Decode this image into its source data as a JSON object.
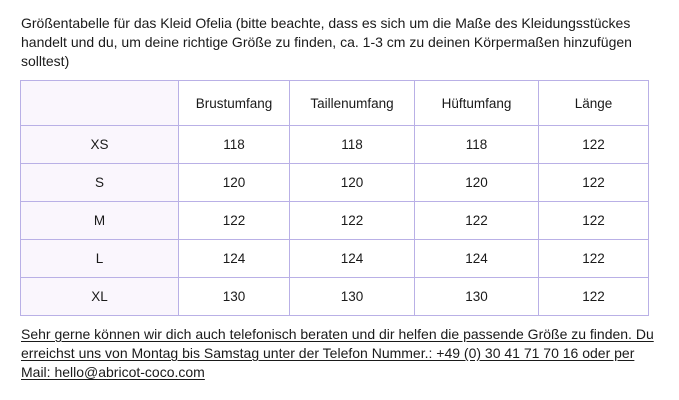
{
  "intro_text": "Größentabelle für das Kleid Ofelia (bitte beachte, dass es sich um die Maße des Kleidungsstückes handelt und du, um deine richtige Größe zu finden, ca. 1-3 cm zu deinen Körpermaßen hinzufügen solltest)",
  "table": {
    "headers": [
      "",
      "Brustumfang",
      "Taillenumfang",
      "Hüftumfang",
      "Länge"
    ],
    "rows": [
      {
        "size": "XS",
        "values": [
          "118",
          "118",
          "118",
          "122"
        ]
      },
      {
        "size": "S",
        "values": [
          "120",
          "120",
          "120",
          "122"
        ]
      },
      {
        "size": "M",
        "values": [
          "122",
          "122",
          "122",
          "122"
        ]
      },
      {
        "size": "L",
        "values": [
          "124",
          "124",
          "124",
          "122"
        ]
      },
      {
        "size": "XL",
        "values": [
          "130",
          "130",
          "130",
          "122"
        ]
      }
    ]
  },
  "contact_text": "Sehr gerne können wir dich auch telefonisch beraten und dir helfen die passende Größe zu finden. Du erreichst uns von Montag bis Samstag unter der Telefon Nummer.: +49 (0) 30 41 71 70 16 oder per Mail: hello@abricot-coco.com",
  "colors": {
    "table_border": "#b9b0e6",
    "size_column_bg": "#faf6fd",
    "text": "#1a1a1a"
  }
}
